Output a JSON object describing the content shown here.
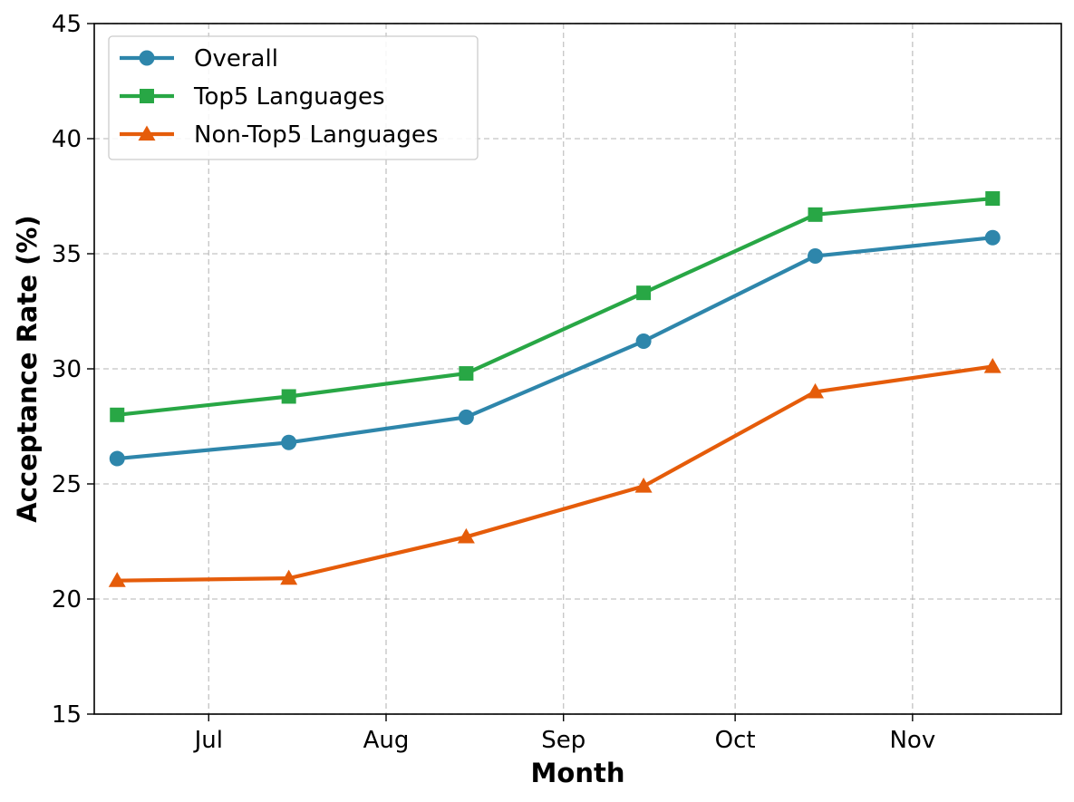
{
  "chart_data": {
    "type": "line",
    "title": "",
    "xlabel": "Month",
    "ylabel": "Acceptance Rate (%)",
    "ylim": [
      15,
      45
    ],
    "yticks": [
      15,
      20,
      25,
      30,
      35,
      40,
      45
    ],
    "xrange": [
      "2024-06-11",
      "2024-11-27"
    ],
    "xticks": [
      {
        "date": "2024-07-01",
        "label": "Jul"
      },
      {
        "date": "2024-08-01",
        "label": "Aug"
      },
      {
        "date": "2024-09-01",
        "label": "Sep"
      },
      {
        "date": "2024-10-01",
        "label": "Oct"
      },
      {
        "date": "2024-11-01",
        "label": "Nov"
      }
    ],
    "x": [
      "2024-06-15",
      "2024-07-15",
      "2024-08-15",
      "2024-09-15",
      "2024-10-15",
      "2024-11-15"
    ],
    "grid": true,
    "legend_position": "top-left",
    "series": [
      {
        "name": "Overall",
        "values": [
          26.1,
          26.8,
          27.9,
          31.2,
          34.9,
          35.7
        ],
        "color": "#2e86ab",
        "marker": "circle"
      },
      {
        "name": "Top5 Languages",
        "values": [
          28.0,
          28.8,
          29.8,
          33.3,
          36.7,
          37.4
        ],
        "color": "#28a745",
        "marker": "square"
      },
      {
        "name": "Non-Top5 Languages",
        "values": [
          20.8,
          20.9,
          22.7,
          24.9,
          29.0,
          30.1
        ],
        "color": "#e55c0a",
        "marker": "triangle"
      }
    ]
  }
}
